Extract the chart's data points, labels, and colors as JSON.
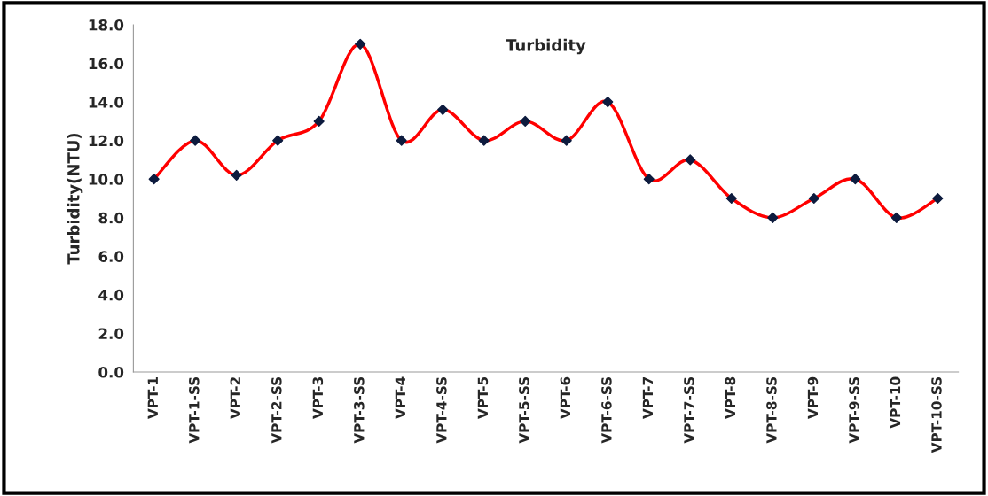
{
  "chart_data": {
    "type": "line",
    "title": "Turbidity",
    "ylabel": "Turbidity(NTU)",
    "categories": [
      "VPT-1",
      "VPT-1-SS",
      "VPT-2",
      "VPT-2-SS",
      "VPT-3",
      "VPT-3-SS",
      "VPT-4",
      "VPT-4-SS",
      "VPT-5",
      "VPT-5-SS",
      "VPT-6",
      "VPT-6-SS",
      "VPT-7",
      "VPT-7-SS",
      "VPT-8",
      "VPT-8-SS",
      "VPT-9",
      "VPT-9-SS",
      "VPT-10",
      "VPT-10-SS"
    ],
    "series": [
      {
        "color": "#ff0000",
        "values": [
          10,
          12,
          10.2,
          12,
          13,
          17,
          12,
          13.6,
          12,
          13,
          12,
          14,
          10,
          11,
          9,
          8,
          9,
          10,
          8,
          9
        ]
      }
    ],
    "ylim": [
      0,
      18
    ],
    "yticks": [
      {
        "value": 0,
        "label": "0.0"
      },
      {
        "value": 2,
        "label": "2.0"
      },
      {
        "value": 4,
        "label": "4.0"
      },
      {
        "value": 6,
        "label": "6.0"
      },
      {
        "value": 8,
        "label": "8.0"
      },
      {
        "value": 10,
        "label": "10.0"
      },
      {
        "value": 12,
        "label": "12.0"
      },
      {
        "value": 14,
        "label": "14.0"
      },
      {
        "value": 16,
        "label": "16.0"
      },
      {
        "value": 18,
        "label": "18.0"
      }
    ],
    "marker": "diamond",
    "line_style": "solid",
    "grid": false,
    "legend": false
  }
}
